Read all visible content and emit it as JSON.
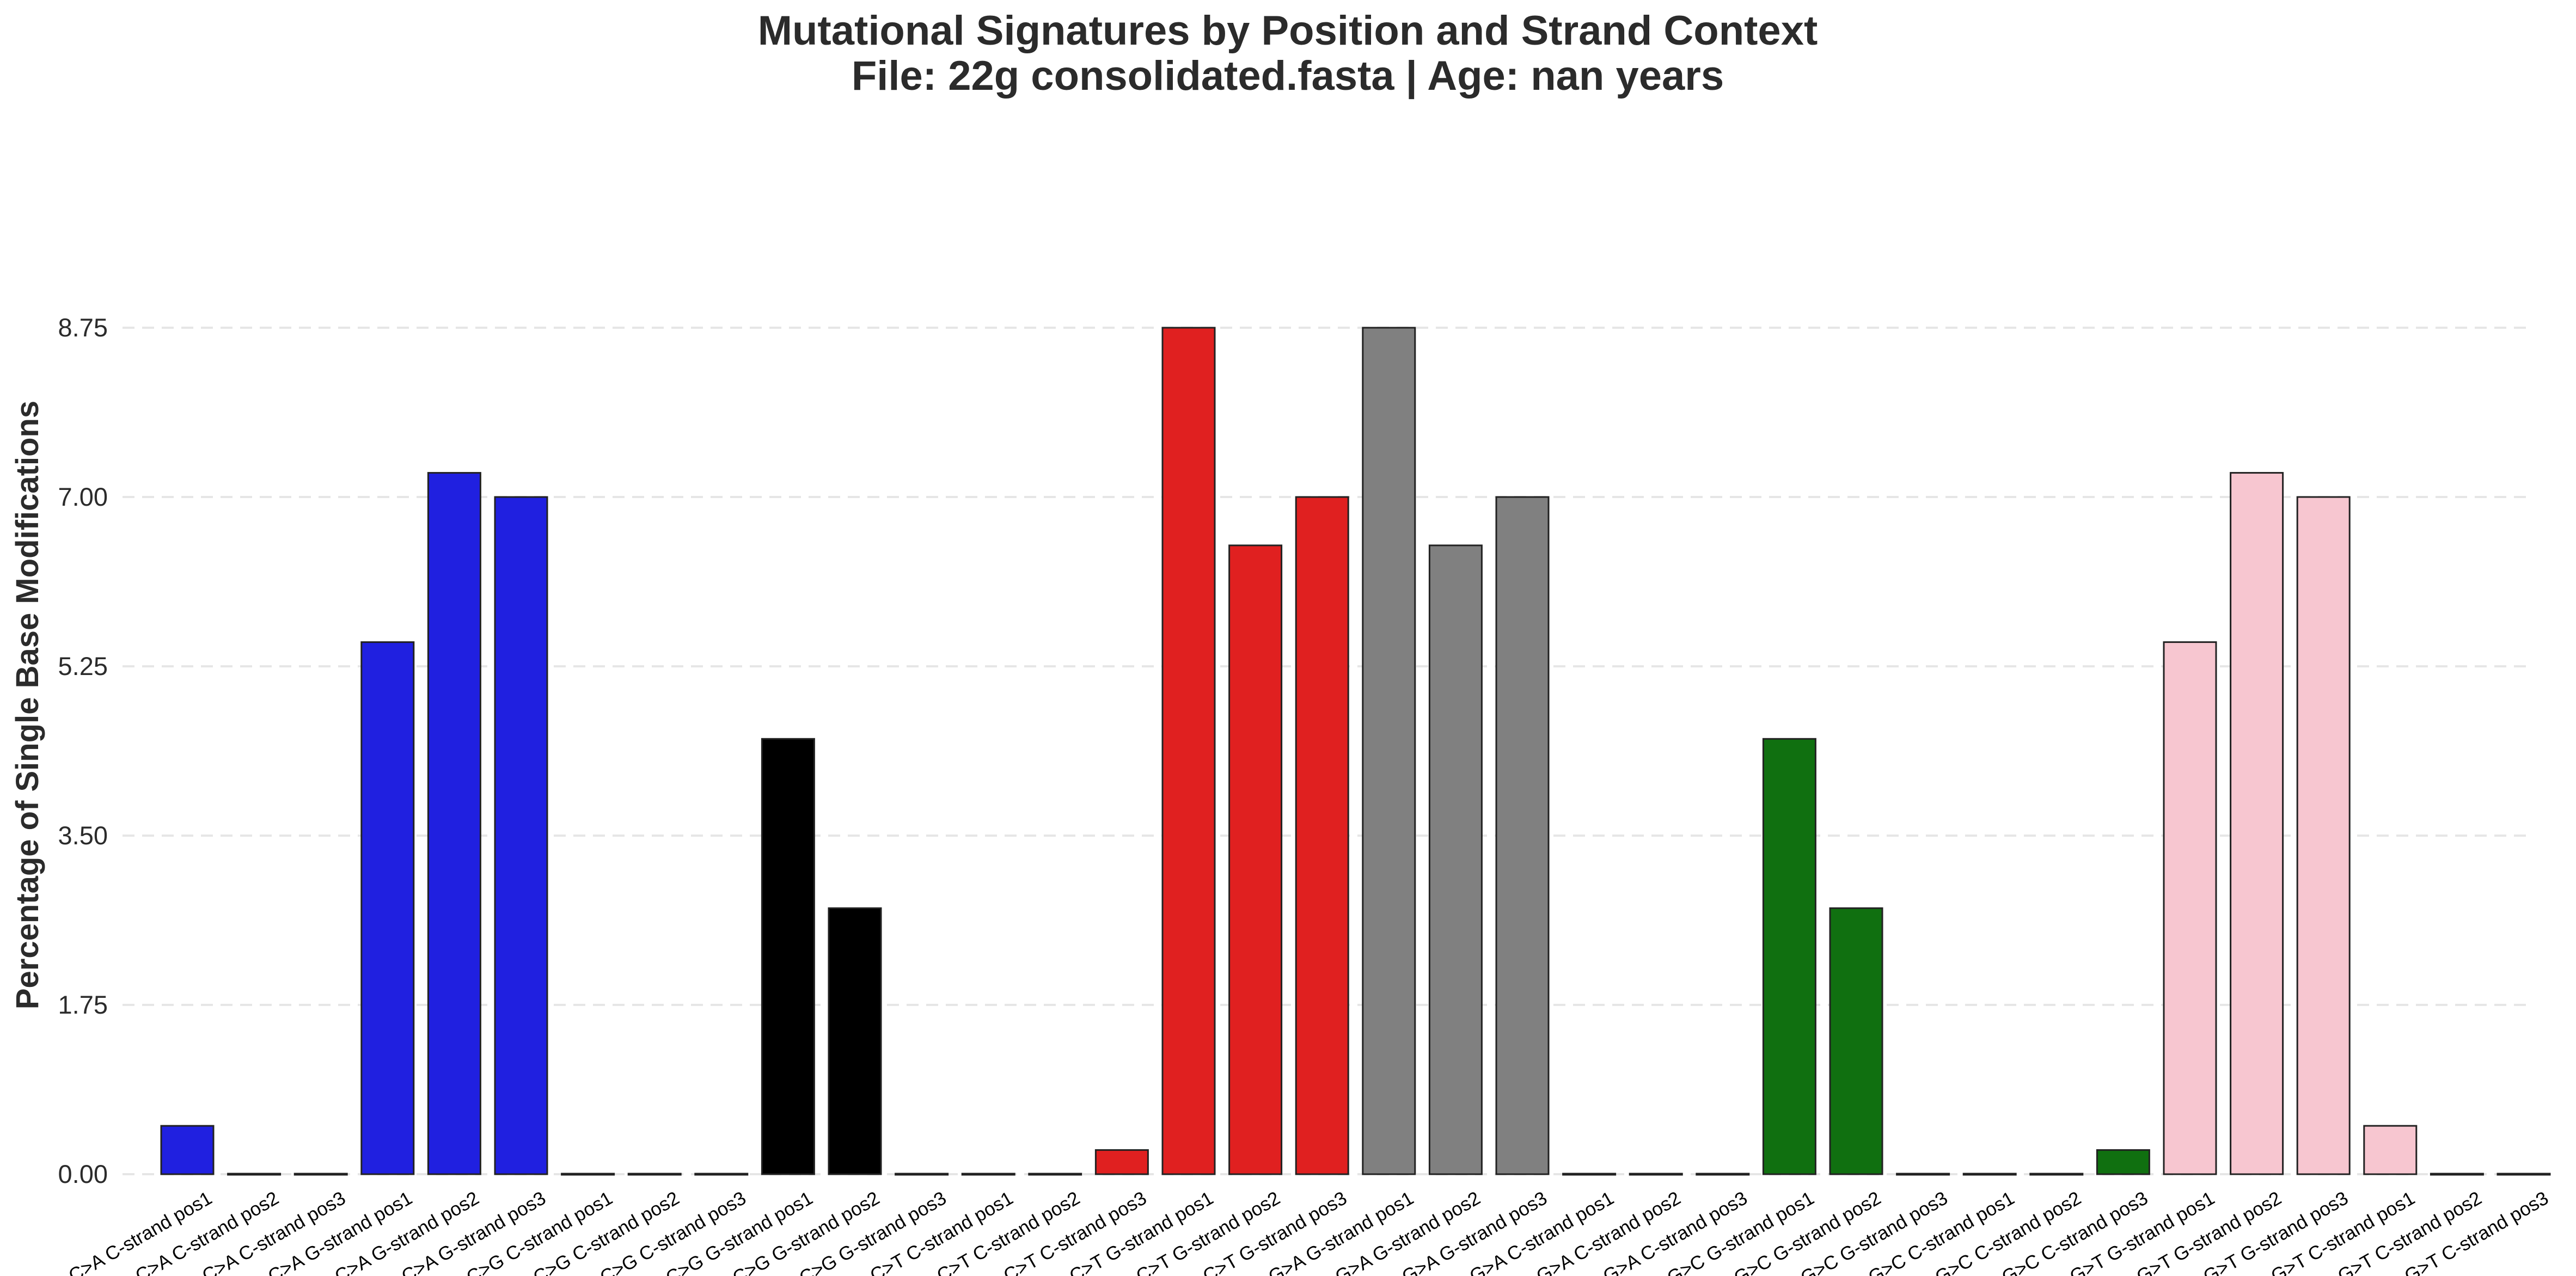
{
  "chart_data": {
    "type": "bar",
    "title": "Mutational Signatures by Position and Strand Context",
    "subtitle": "File: 22g consolidated.fasta | Age: nan years",
    "xlabel": "",
    "ylabel": "Percentage of Single Base Modifications",
    "ylim": [
      0,
      8.75
    ],
    "yticks": [
      "0.00",
      "1.75",
      "3.50",
      "5.25",
      "7.00",
      "8.75"
    ],
    "grid": "horizontal dashed",
    "categories": [
      "C>A C-strand pos1",
      "C>A C-strand pos2",
      "C>A C-strand pos3",
      "C>A G-strand pos1",
      "C>A G-strand pos2",
      "C>A G-strand pos3",
      "C>G C-strand pos1",
      "C>G C-strand pos2",
      "C>G C-strand pos3",
      "C>G G-strand pos1",
      "C>G G-strand pos2",
      "C>G G-strand pos3",
      "C>T C-strand pos1",
      "C>T C-strand pos2",
      "C>T C-strand pos3",
      "C>T G-strand pos1",
      "C>T G-strand pos2",
      "C>T G-strand pos3",
      "G>A G-strand pos1",
      "G>A G-strand pos2",
      "G>A G-strand pos3",
      "G>A C-strand pos1",
      "G>A C-strand pos2",
      "G>A C-strand pos3",
      "G>C G-strand pos1",
      "G>C G-strand pos2",
      "G>C G-strand pos3",
      "G>C C-strand pos1",
      "G>C C-strand pos2",
      "G>C C-strand pos3",
      "G>T G-strand pos1",
      "G>T G-strand pos2",
      "G>T G-strand pos3",
      "G>T C-strand pos1",
      "G>T C-strand pos2",
      "G>T C-strand pos3"
    ],
    "values": [
      0.5,
      0,
      0,
      5.5,
      7.25,
      7.0,
      0,
      0,
      0,
      4.5,
      2.75,
      0,
      0,
      0,
      0.25,
      8.75,
      6.5,
      7.0,
      8.75,
      6.5,
      7.0,
      0,
      0,
      0,
      4.5,
      2.75,
      0,
      0,
      0,
      0.25,
      5.5,
      7.25,
      7.0,
      0.5,
      0,
      0
    ],
    "colors": [
      "#2020e0",
      "#2020e0",
      "#2020e0",
      "#2020e0",
      "#2020e0",
      "#2020e0",
      "#000000",
      "#000000",
      "#000000",
      "#000000",
      "#000000",
      "#000000",
      "#e02020",
      "#e02020",
      "#e02020",
      "#e02020",
      "#e02020",
      "#e02020",
      "#808080",
      "#808080",
      "#808080",
      "#808080",
      "#808080",
      "#808080",
      "#107010",
      "#107010",
      "#107010",
      "#107010",
      "#107010",
      "#107010",
      "#f7c6d0",
      "#f7c6d0",
      "#f7c6d0",
      "#f7c6d0",
      "#f7c6d0",
      "#f7c6d0"
    ]
  }
}
